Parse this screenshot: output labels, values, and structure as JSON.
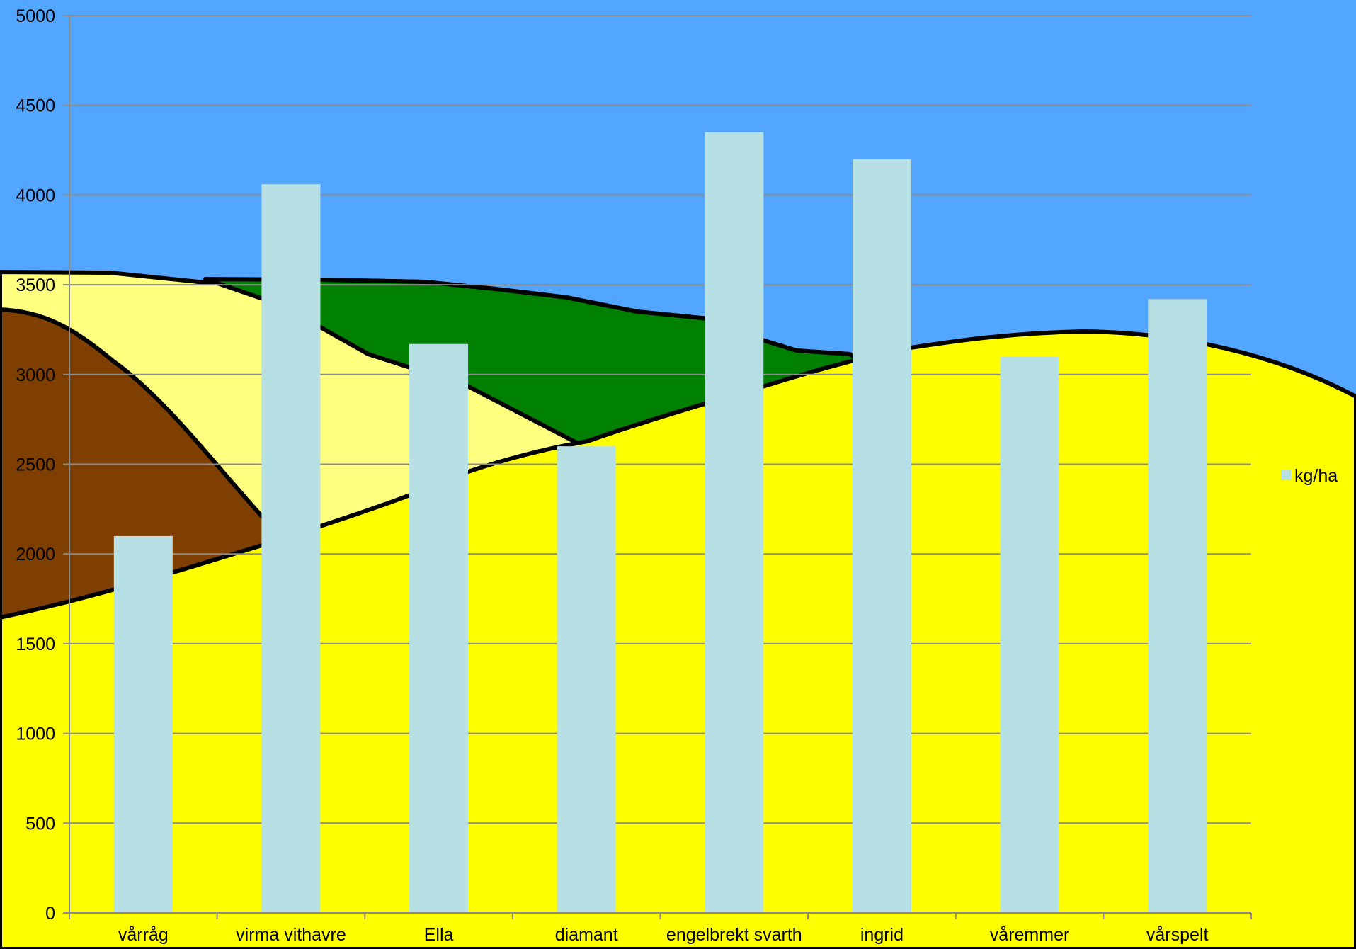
{
  "colors": {
    "sky": "#52a6ff",
    "field_yellow": "#ffff00",
    "field_light_yellow": "#ffff80",
    "field_brown": "#7f3f00",
    "field_green": "#008000",
    "outline": "#000000",
    "gridline": "#8c8c8c",
    "bar_fill": "#b7e0e5"
  },
  "chart_data": {
    "type": "bar",
    "title": "",
    "xlabel": "",
    "ylabel": "",
    "categories": [
      "vårråg",
      "virma vithavre",
      "Ella",
      "diamant",
      "engelbrekt svarth",
      "ingrid",
      "våremmer",
      "vårspelt"
    ],
    "series": [
      {
        "name": "kg/ha",
        "values": [
          2100,
          4060,
          3170,
          2600,
          4350,
          4200,
          3100,
          3420
        ]
      }
    ],
    "ylim": [
      0,
      5000
    ],
    "yticks": [
      0,
      500,
      1000,
      1500,
      2000,
      2500,
      3000,
      3500,
      4000,
      4500,
      5000
    ],
    "grid": true,
    "legend_position": "right"
  }
}
